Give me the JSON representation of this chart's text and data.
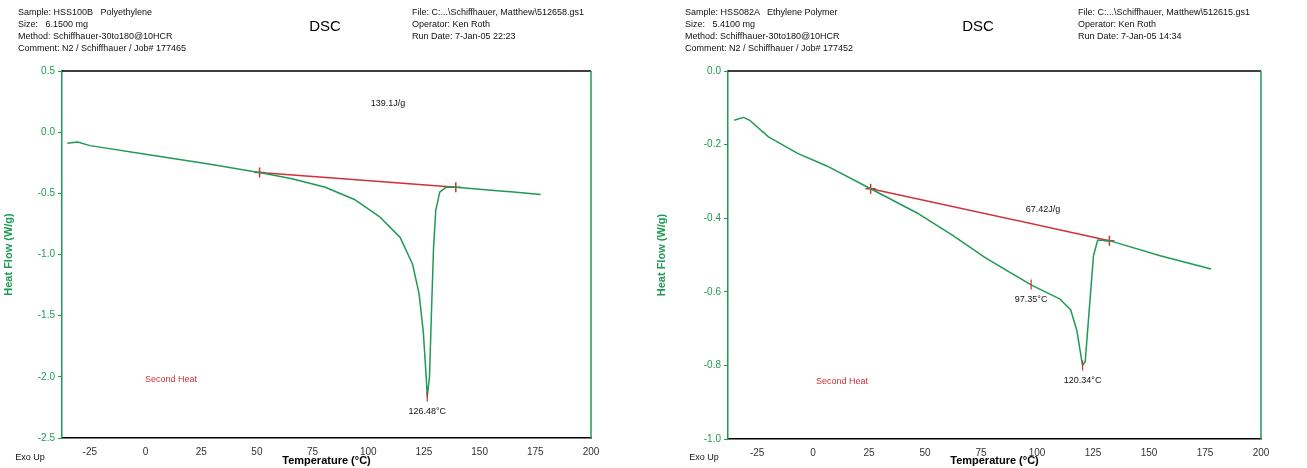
{
  "chart_data": [
    {
      "type": "line",
      "title": "DSC",
      "xlabel": "Temperature (°C)",
      "ylabel": "Heat Flow (W/g)",
      "xlim": [
        -37.5,
        200
      ],
      "ylim": [
        -2.5,
        0.5
      ],
      "xticks": [
        -25,
        0,
        25,
        50,
        75,
        100,
        125,
        150,
        175,
        200
      ],
      "yticks": [
        {
          "value": -2.5,
          "label": "-2.5"
        },
        {
          "value": -2,
          "label": "-2.0"
        },
        {
          "value": -1.5,
          "label": "-1.5"
        },
        {
          "value": -1,
          "label": "-1.0"
        },
        {
          "value": -0.5,
          "label": "-0.5"
        },
        {
          "value": 0,
          "label": "0.0"
        },
        {
          "value": 0.5,
          "label": "0.5"
        }
      ],
      "grid": false,
      "legend": false,
      "marker": "none",
      "series": [
        {
          "color": "#1f9a55",
          "x": [
            -35.1,
            -30.5,
            -24.9,
            0,
            28.4,
            51.2,
            65.8,
            80.7,
            93.8,
            105,
            114.3,
            119.9,
            122.8,
            124.7,
            126,
            126.48,
            127.5,
            128.4,
            129.3,
            130.3,
            132.1,
            135,
            139.3,
            159.3,
            177.4
          ],
          "values": [
            -0.09,
            -0.08,
            -0.11,
            -0.18,
            -0.26,
            -0.33,
            -0.38,
            -0.45,
            -0.55,
            -0.69,
            -0.86,
            -1.08,
            -1.32,
            -1.63,
            -2.0,
            -2.16,
            -2.0,
            -1.46,
            -0.95,
            -0.64,
            -0.49,
            -0.45,
            -0.45,
            -0.48,
            -0.51
          ]
        },
        {
          "color": "#d0303a",
          "marker": "cross",
          "x": [
            51.2,
            139.3
          ],
          "values": [
            -0.33,
            -0.45
          ]
        }
      ],
      "annotations": [
        "Sample: HSS100B   Polyethylene",
        "Size:   6.1500 mg",
        "Method: Schiffhauer-30to180@10HCR",
        "Comment: N2 / Schiffhauer / Job# 177465",
        "File: C:...\\Schiffhauer, Matthew\\512658.gs1",
        "Operator: Ken Roth",
        "Run Date: 7-Jan-05 22:23",
        "139.1J/g",
        "Second Heat",
        "Exo Up",
        {
          "text": "126.48°C",
          "x": 126.48,
          "y": -2.16
        }
      ]
    },
    {
      "type": "line",
      "title": "DSC",
      "xlabel": "Temperature (°C)",
      "ylabel": "Heat Flow (W/g)",
      "xlim": [
        -38,
        200
      ],
      "ylim": [
        -1,
        0
      ],
      "xticks": [
        -25,
        0,
        25,
        50,
        75,
        100,
        125,
        150,
        175,
        200
      ],
      "yticks": [
        {
          "value": -1,
          "label": "-1.0"
        },
        {
          "value": -0.8,
          "label": "-0.8"
        },
        {
          "value": -0.6,
          "label": "-0.6"
        },
        {
          "value": -0.4,
          "label": "-0.4"
        },
        {
          "value": -0.2,
          "label": "-0.2"
        },
        {
          "value": 0,
          "label": "0.0"
        }
      ],
      "grid": false,
      "legend": false,
      "marker": "none",
      "series": [
        {
          "color": "#1f9a55",
          "x": [
            -35.2,
            -31.1,
            -28.3,
            -19.9,
            -6.9,
            6.1,
            25.7,
            47.1,
            62,
            76.8,
            97.3,
            110.3,
            115,
            117.8,
            120.3,
            121.5,
            123.3,
            125.2,
            127.1,
            132.3,
            155,
            177.7
          ],
          "values": [
            -0.134,
            -0.126,
            -0.134,
            -0.179,
            -0.224,
            -0.258,
            -0.32,
            -0.388,
            -0.445,
            -0.507,
            -0.581,
            -0.62,
            -0.649,
            -0.706,
            -0.8,
            -0.79,
            -0.649,
            -0.502,
            -0.459,
            -0.461,
            -0.502,
            -0.538
          ]
        },
        {
          "color": "#d0303a",
          "marker": "cross",
          "x": [
            25.7,
            132.3
          ],
          "values": [
            -0.32,
            -0.461
          ]
        }
      ],
      "annotations": [
        "Sample: HSS082A   Ethylene Polymer",
        "Size:   5.4100 mg",
        "Method: Schiffhauer-30to180@10HCR",
        "Comment: N2 / Schiffhauer / Job# 177452",
        "File: C:...\\Schiffhauer, Matthew\\512615.gs1",
        "Operator: Ken Roth",
        "Run Date: 7-Jan-05 14:34",
        "67.42J/g",
        "Second Heat",
        "Exo Up",
        {
          "text": "97.35°C",
          "x": 97.35,
          "y": -0.58
        },
        {
          "text": "120.34°C",
          "x": 120.34,
          "y": -0.8
        }
      ]
    }
  ]
}
